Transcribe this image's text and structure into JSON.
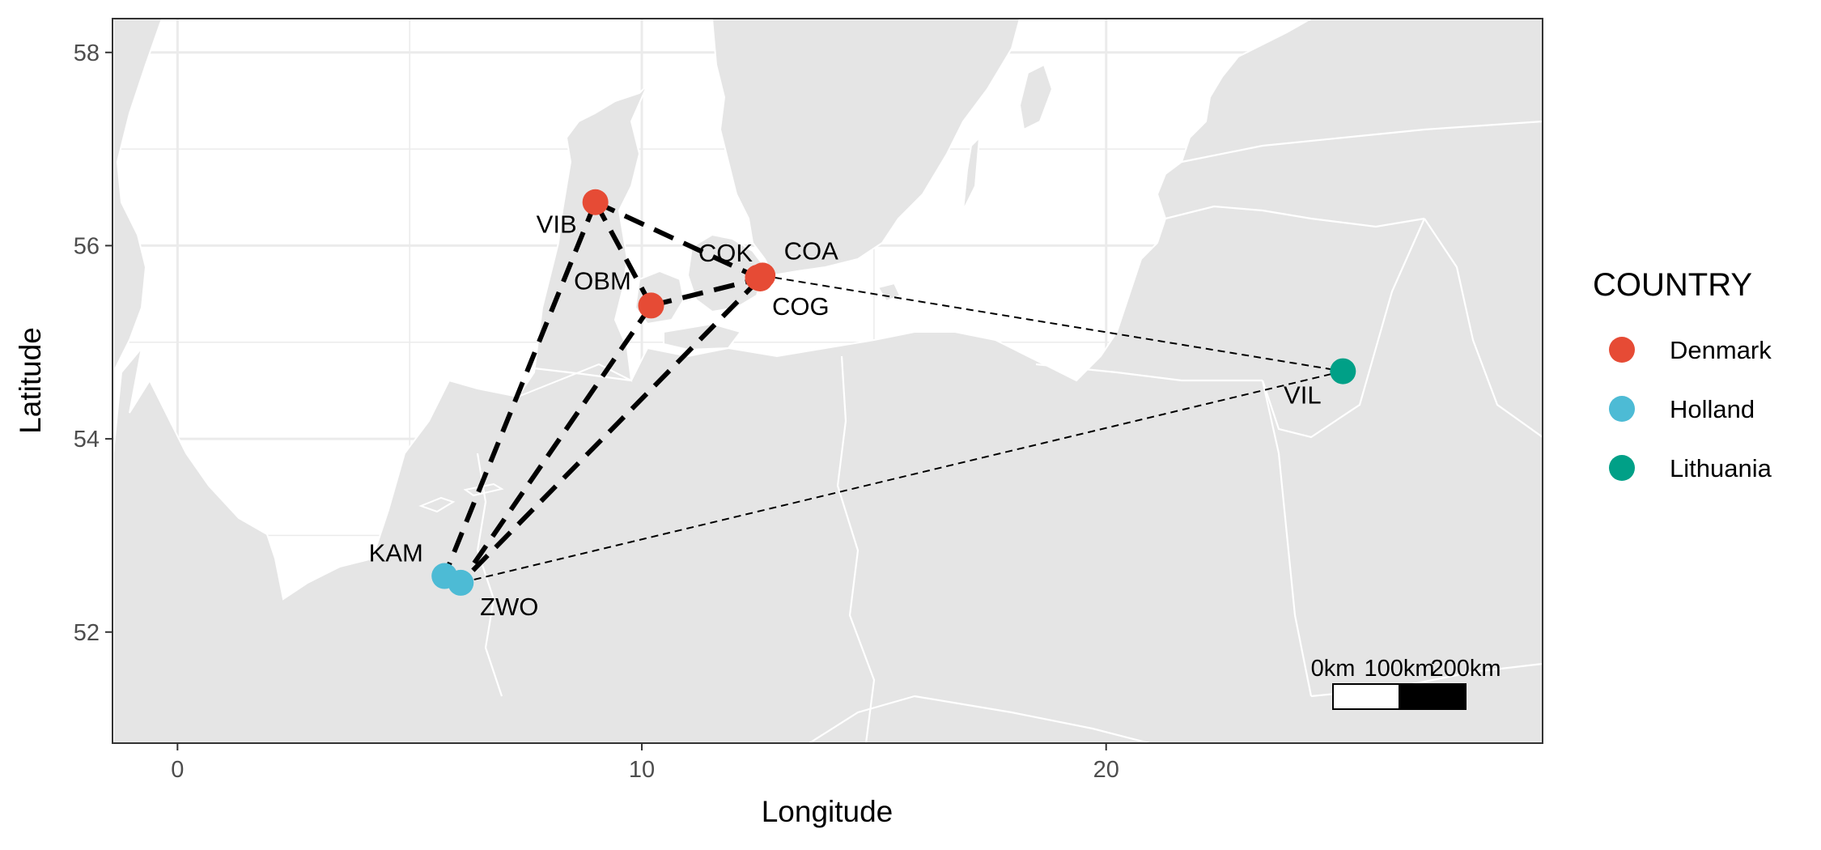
{
  "xlabel": "Longitude",
  "ylabel": "Latitude",
  "legend": {
    "title": "COUNTRY",
    "entries": [
      {
        "label": "Denmark",
        "color": "#E64B35"
      },
      {
        "label": "Holland",
        "color": "#4DBBD5"
      },
      {
        "label": "Lithuania",
        "color": "#00A087"
      }
    ]
  },
  "scalebar": {
    "labels": [
      "0km",
      "100km",
      "200km"
    ]
  },
  "colors": {
    "land": "#e5e5e5",
    "water": "#ffffff",
    "border": "#ffffff",
    "panel_border": "#333333"
  },
  "chart_data": {
    "type": "scatter",
    "xlim": [
      -1.4,
      29.4
    ],
    "ylim": [
      50.85,
      58.35
    ],
    "xticks": [
      0,
      10,
      20
    ],
    "yticks": [
      52,
      54,
      56,
      58
    ],
    "xtick_labels": [
      "0",
      "10",
      "20"
    ],
    "ytick_labels": [
      "52",
      "54",
      "56",
      "58"
    ],
    "grid": true,
    "legend_position": "right",
    "sites": [
      {
        "code": "VIB",
        "country": "Denmark",
        "lon": 9.0,
        "lat": 56.45
      },
      {
        "code": "OBM",
        "country": "Denmark",
        "lon": 10.2,
        "lat": 55.38
      },
      {
        "code": "COK",
        "country": "Denmark",
        "lon": 12.5,
        "lat": 55.67
      },
      {
        "code": "COA",
        "country": "Denmark",
        "lon": 12.6,
        "lat": 55.69
      },
      {
        "code": "COG",
        "country": "Denmark",
        "lon": 12.55,
        "lat": 55.66
      },
      {
        "code": "VIL",
        "country": "Lithuania",
        "lon": 25.1,
        "lat": 54.7
      },
      {
        "code": "KAM",
        "country": "Holland",
        "lon": 5.75,
        "lat": 52.58
      },
      {
        "code": "ZWO",
        "country": "Holland",
        "lon": 6.1,
        "lat": 52.51
      }
    ],
    "links": [
      {
        "from": "VIB",
        "to": "COK",
        "style": "thick"
      },
      {
        "from": "VIB",
        "to": "OBM",
        "style": "thick"
      },
      {
        "from": "OBM",
        "to": "COG",
        "style": "thick"
      },
      {
        "from": "VIB",
        "to": "KAM",
        "style": "thick"
      },
      {
        "from": "OBM",
        "to": "ZWO",
        "style": "thick"
      },
      {
        "from": "COG",
        "to": "ZWO",
        "style": "thick"
      },
      {
        "from": "COA",
        "to": "VIL",
        "style": "thin"
      },
      {
        "from": "VIL",
        "to": "ZWO",
        "style": "thin"
      }
    ]
  }
}
